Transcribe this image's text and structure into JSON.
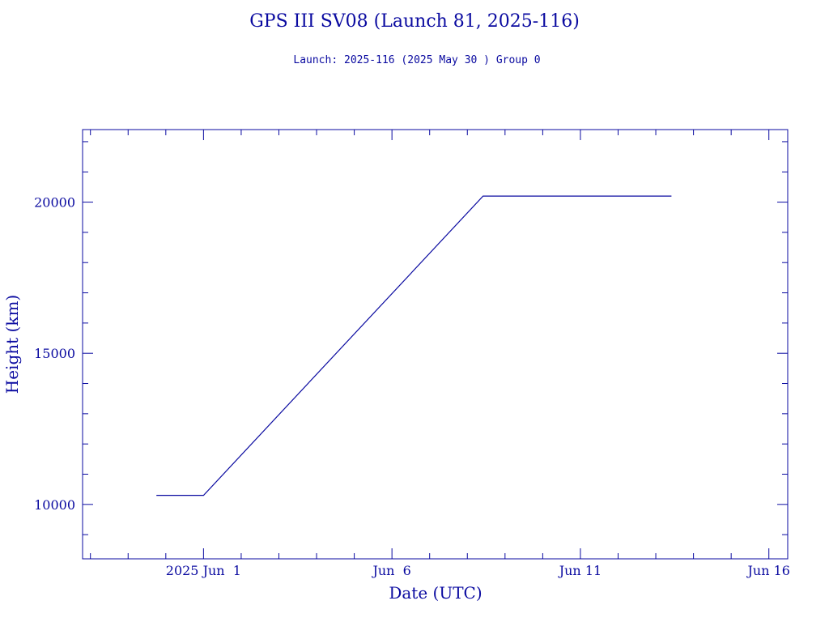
{
  "title": "GPS III SV08 (Launch 81, 2025-116)",
  "subtitle": "Launch: 2025-116  (2025 May 30 )  Group 0",
  "colors": {
    "ink": "#0a0aa0"
  },
  "chart_data": {
    "type": "line",
    "title": "GPS III SV08 (Launch 81, 2025-116)",
    "subtitle": "Launch: 2025-116  (2025 May 30 )  Group 0",
    "xlabel": "Date (UTC)",
    "ylabel": "Height (km)",
    "x_unit": "date (UTC)",
    "xlim": [
      "2025-05-28T19:00",
      "2025-06-16T12:00"
    ],
    "ylim": [
      8200,
      22400
    ],
    "x_ticks": [
      {
        "value": "2025-06-01",
        "label": "2025 Jun  1"
      },
      {
        "value": "2025-06-06",
        "label": "Jun  6"
      },
      {
        "value": "2025-06-11",
        "label": "Jun 11"
      },
      {
        "value": "2025-06-16",
        "label": "Jun 16"
      }
    ],
    "y_ticks": [
      10000,
      15000,
      20000
    ],
    "grid": false,
    "legend": "none",
    "series": [
      {
        "points": [
          {
            "x": "2025-05-30T18:00",
            "y": 10300
          },
          {
            "x": "2025-06-01T00:00",
            "y": 10300
          },
          {
            "x": "2025-06-08T10:00",
            "y": 20200
          },
          {
            "x": "2025-06-13T10:00",
            "y": 20200
          }
        ]
      }
    ]
  }
}
